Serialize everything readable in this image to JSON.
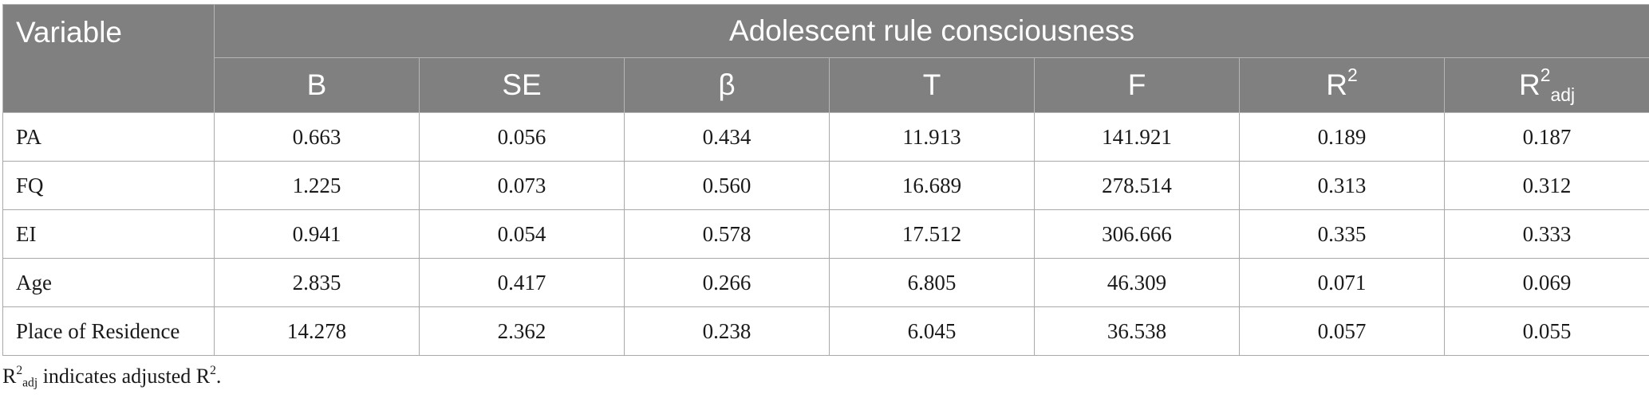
{
  "table": {
    "variable_header": "Variable",
    "group_header": "Adolescent rule consciousness",
    "columns": {
      "b": "B",
      "se": "SE",
      "beta": "β",
      "t": "T",
      "f": "F",
      "r2_base": "R",
      "r2_sup": "2",
      "r2adj_base": "R",
      "r2adj_sup": "2",
      "r2adj_sub": "adj"
    },
    "rows": [
      {
        "variable": "PA",
        "b": "0.663",
        "se": "0.056",
        "beta": "0.434",
        "t": "11.913",
        "f": "141.921",
        "r2": "0.189",
        "r2adj": "0.187"
      },
      {
        "variable": "FQ",
        "b": "1.225",
        "se": "0.073",
        "beta": "0.560",
        "t": "16.689",
        "f": "278.514",
        "r2": "0.313",
        "r2adj": "0.312"
      },
      {
        "variable": "EI",
        "b": "0.941",
        "se": "0.054",
        "beta": "0.578",
        "t": "17.512",
        "f": "306.666",
        "r2": "0.335",
        "r2adj": "0.333"
      },
      {
        "variable": "Age",
        "b": "2.835",
        "se": "0.417",
        "beta": "0.266",
        "t": "6.805",
        "f": "46.309",
        "r2": "0.071",
        "r2adj": "0.069"
      },
      {
        "variable": "Place of Residence",
        "b": "14.278",
        "se": "2.362",
        "beta": "0.238",
        "t": "6.045",
        "f": "36.538",
        "r2": "0.057",
        "r2adj": "0.055"
      }
    ]
  },
  "footnote": {
    "r_base": "R",
    "r_sup": "2",
    "r_sub": "adj",
    "middle_text": " indicates adjusted R",
    "end_sup": "2",
    "end_text": "."
  },
  "colors": {
    "header_bg": "#808080",
    "header_text": "#ffffff",
    "border": "#a9a9a9"
  }
}
